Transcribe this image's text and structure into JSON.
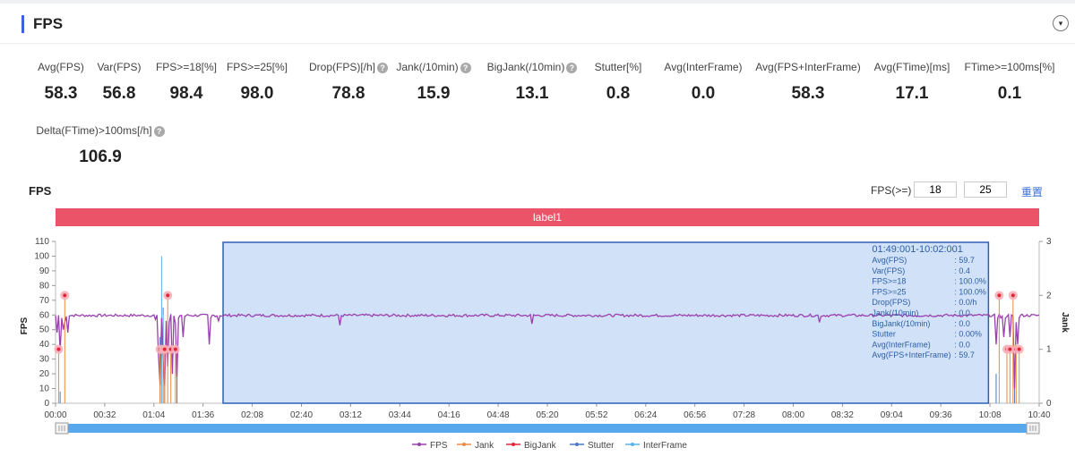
{
  "header": {
    "title": "FPS",
    "collapse_icon": "▾"
  },
  "metrics": [
    {
      "label": "Avg(FPS)",
      "value": "58.3",
      "help": false
    },
    {
      "label": "Var(FPS)",
      "value": "56.8",
      "help": false
    },
    {
      "label": "FPS>=18[%]",
      "value": "98.4",
      "help": false
    },
    {
      "label": "FPS>=25[%]",
      "value": "98.0",
      "help": false
    },
    {
      "label": "Drop(FPS)[/h]",
      "value": "78.8",
      "help": true
    },
    {
      "label": "Jank(/10min)",
      "value": "15.9",
      "help": true
    },
    {
      "label": "BigJank(/10min)",
      "value": "13.1",
      "help": true
    },
    {
      "label": "Stutter[%]",
      "value": "0.8",
      "help": false
    },
    {
      "label": "Avg(InterFrame)",
      "value": "0.0",
      "help": false
    },
    {
      "label": "Avg(FPS+InterFrame)",
      "value": "58.3",
      "help": false
    },
    {
      "label": "Avg(FTime)[ms]",
      "value": "17.1",
      "help": false
    },
    {
      "label": "FTime>=100ms[%]",
      "value": "0.1",
      "help": false
    },
    {
      "label": "Delta(FTime)>100ms[/h]",
      "value": "106.9",
      "help": true
    }
  ],
  "controls": {
    "chart_title": "FPS",
    "threshold_label": "FPS(>=)",
    "threshold1": "18",
    "threshold2": "25",
    "reset_label": "重置",
    "band_label": "label1"
  },
  "chart_data": {
    "type": "line",
    "title": "FPS",
    "xlabel": "",
    "ylabel": "FPS",
    "y2label": "Jank",
    "x_ticks": [
      "00:00",
      "00:32",
      "01:04",
      "01:36",
      "02:08",
      "02:40",
      "03:12",
      "03:44",
      "04:16",
      "04:48",
      "05:20",
      "05:52",
      "06:24",
      "06:56",
      "07:28",
      "08:00",
      "08:32",
      "09:04",
      "09:36",
      "10:08",
      "10:40"
    ],
    "x_range_seconds": [
      0,
      640
    ],
    "ylim": [
      0,
      110
    ],
    "y_ticks": [
      0,
      10,
      20,
      30,
      40,
      50,
      60,
      70,
      80,
      90,
      100,
      110
    ],
    "y2lim": [
      0,
      3
    ],
    "y2_ticks": [
      0,
      1,
      2,
      3
    ],
    "series_names": [
      "FPS",
      "Jank",
      "BigJank",
      "Stutter",
      "InterFrame"
    ],
    "series_colors": [
      "#9a3fae",
      "#f08a3c",
      "#e0263a",
      "#4a78c8",
      "#55b4ea"
    ],
    "fps_baseline": 59.7,
    "fps_dips": [
      {
        "t": 1,
        "fps": 48
      },
      {
        "t": 3,
        "fps": 35
      },
      {
        "t": 4,
        "fps": 58
      },
      {
        "t": 5,
        "fps": 50
      },
      {
        "t": 6,
        "fps": 55
      },
      {
        "t": 8,
        "fps": 48
      },
      {
        "t": 65,
        "fps": 57
      },
      {
        "t": 67,
        "fps": 33
      },
      {
        "t": 68,
        "fps": 12
      },
      {
        "t": 69,
        "fps": 58
      },
      {
        "t": 70,
        "fps": 30
      },
      {
        "t": 71,
        "fps": 12
      },
      {
        "t": 72,
        "fps": 56
      },
      {
        "t": 73,
        "fps": 25
      },
      {
        "t": 74,
        "fps": 55
      },
      {
        "t": 76,
        "fps": 20
      },
      {
        "t": 78,
        "fps": 54
      },
      {
        "t": 79,
        "fps": 18
      },
      {
        "t": 80,
        "fps": 58
      },
      {
        "t": 83,
        "fps": 45
      },
      {
        "t": 84,
        "fps": 59
      },
      {
        "t": 100,
        "fps": 40
      },
      {
        "t": 101,
        "fps": 58
      },
      {
        "t": 106,
        "fps": 56
      },
      {
        "t": 185,
        "fps": 53
      },
      {
        "t": 310,
        "fps": 54
      },
      {
        "t": 497,
        "fps": 55
      },
      {
        "t": 612,
        "fps": 40
      },
      {
        "t": 613,
        "fps": 58
      },
      {
        "t": 615,
        "fps": 58
      },
      {
        "t": 617,
        "fps": 45
      },
      {
        "t": 618,
        "fps": 58
      },
      {
        "t": 621,
        "fps": 45
      },
      {
        "t": 622,
        "fps": 60
      },
      {
        "t": 624,
        "fps": 10
      },
      {
        "t": 625,
        "fps": 55
      },
      {
        "t": 626,
        "fps": 40
      },
      {
        "t": 627,
        "fps": 58
      }
    ],
    "jank_points": [
      {
        "t": 2,
        "jank": 1
      },
      {
        "t": 6,
        "jank": 2
      },
      {
        "t": 68,
        "jank": 1
      },
      {
        "t": 70,
        "jank": 1
      },
      {
        "t": 71,
        "jank": 1
      },
      {
        "t": 73,
        "jank": 2
      },
      {
        "t": 75,
        "jank": 1
      },
      {
        "t": 78,
        "jank": 1
      },
      {
        "t": 614,
        "jank": 2
      },
      {
        "t": 619,
        "jank": 1
      },
      {
        "t": 621,
        "jank": 1
      },
      {
        "t": 623,
        "jank": 2
      },
      {
        "t": 625,
        "jank": 1
      },
      {
        "t": 627,
        "jank": 1
      }
    ],
    "stutter_spikes": [
      {
        "t": 3,
        "value": 8
      },
      {
        "t": 68,
        "value": 45
      },
      {
        "t": 70,
        "value": 65
      },
      {
        "t": 71,
        "value": 35
      },
      {
        "t": 79,
        "value": 30
      },
      {
        "t": 612,
        "value": 20
      },
      {
        "t": 624,
        "value": 25
      }
    ],
    "interframe_spikes": [
      {
        "t": 69,
        "value": 100
      },
      {
        "t": 70,
        "value": 60
      }
    ],
    "selection": {
      "start": 109,
      "end": 607,
      "title": "01:49:001-10:02:001",
      "stats": [
        {
          "label": "Avg(FPS)",
          "value": ": 59.7"
        },
        {
          "label": "Var(FPS)",
          "value": ": 0.4"
        },
        {
          "label": "FPS>=18",
          "value": ": 100.0%"
        },
        {
          "label": "FPS>=25",
          "value": ": 100.0%"
        },
        {
          "label": "Drop(FPS)",
          "value": ": 0.0/h"
        },
        {
          "label": "Jank(/10min)",
          "value": ": 0.0"
        },
        {
          "label": "BigJank(/10min)",
          "value": ": 0.0"
        },
        {
          "label": "Stutter",
          "value": ": 0.00%"
        },
        {
          "label": "Avg(InterFrame)",
          "value": ": 0.0"
        },
        {
          "label": "Avg(FPS+InterFrame)",
          "value": ": 59.7"
        }
      ]
    }
  }
}
